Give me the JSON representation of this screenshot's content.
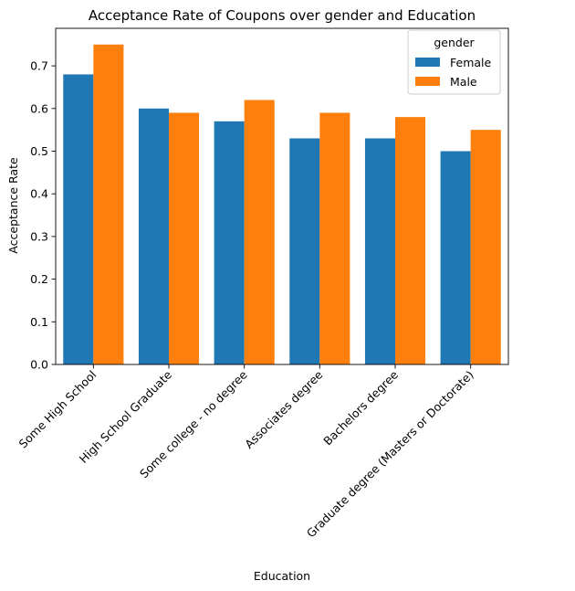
{
  "chart_data": {
    "type": "bar",
    "title": "Acceptance Rate of Coupons over gender and Education",
    "xlabel": "Education",
    "ylabel": "Acceptance Rate",
    "categories": [
      "Some High School",
      "High School Graduate",
      "Some college - no degree",
      "Associates degree",
      "Bachelors degree",
      "Graduate degree (Masters or Doctorate)"
    ],
    "series": [
      {
        "name": "Female",
        "color": "#1f77b4",
        "values": [
          0.68,
          0.6,
          0.57,
          0.53,
          0.53,
          0.5
        ]
      },
      {
        "name": "Male",
        "color": "#ff7f0e",
        "values": [
          0.75,
          0.59,
          0.62,
          0.59,
          0.58,
          0.55
        ]
      }
    ],
    "ylim": [
      0,
      0.788
    ],
    "yticks": [
      "0.0",
      "0.1",
      "0.2",
      "0.3",
      "0.4",
      "0.5",
      "0.6",
      "0.7"
    ],
    "legend": {
      "title": "gender",
      "placement": "top-right"
    },
    "grid": false
  }
}
